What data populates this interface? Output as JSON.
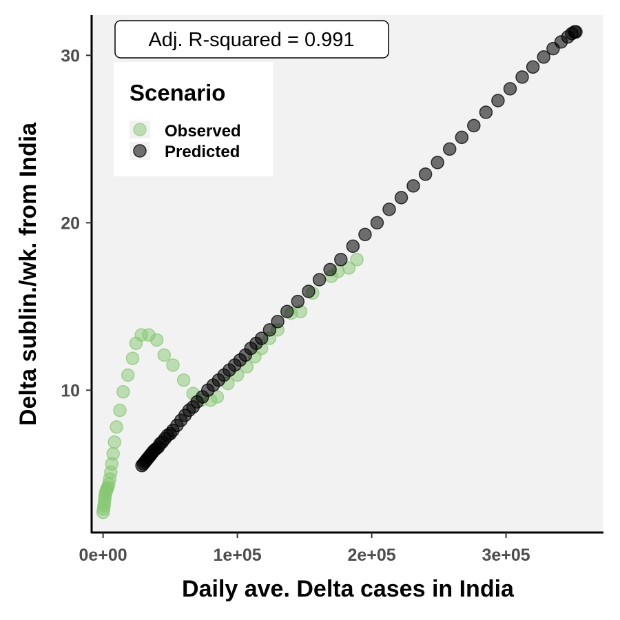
{
  "chart_data": {
    "type": "scatter",
    "xlabel": "Daily ave. Delta cases in India",
    "ylabel": "Delta sublin./wk. from India",
    "xlim": [
      -8000,
      372000
    ],
    "ylim": [
      1.5,
      32.4
    ],
    "x_ticks": [
      0,
      100000,
      200000,
      300000
    ],
    "x_tick_labels": [
      "0e+00",
      "1e+05",
      "2e+05",
      "3e+05"
    ],
    "y_ticks": [
      10,
      20,
      30
    ],
    "y_tick_labels": [
      "10",
      "20",
      "30"
    ],
    "grid": false,
    "background": "#f2f2f2",
    "annotation": "Adj. R-squared = 0.991",
    "legend": {
      "title": "Scenario",
      "position": "top-left",
      "entries": [
        {
          "label": "Observed",
          "color": "#84c870"
        },
        {
          "label": "Predicted",
          "color": "#000000"
        }
      ]
    },
    "series": [
      {
        "name": "Observed",
        "color": "#84c870",
        "opacity": 0.5,
        "points": [
          [
            0,
            2.7
          ],
          [
            400,
            2.9
          ],
          [
            700,
            3.1
          ],
          [
            1000,
            3.3
          ],
          [
            1300,
            3.5
          ],
          [
            1600,
            3.7
          ],
          [
            2000,
            3.9
          ],
          [
            2500,
            4.0
          ],
          [
            3000,
            4.1
          ],
          [
            3500,
            4.2
          ],
          [
            4200,
            4.4
          ],
          [
            5000,
            4.7
          ],
          [
            5800,
            5.1
          ],
          [
            6500,
            5.6
          ],
          [
            7500,
            6.2
          ],
          [
            8500,
            6.9
          ],
          [
            10000,
            7.8
          ],
          [
            12500,
            8.8
          ],
          [
            15000,
            9.9
          ],
          [
            18500,
            10.9
          ],
          [
            22000,
            11.9
          ],
          [
            24500,
            12.8
          ],
          [
            28500,
            13.3
          ],
          [
            34000,
            13.3
          ],
          [
            40000,
            13.0
          ],
          [
            45500,
            12.1
          ],
          [
            52000,
            11.5
          ],
          [
            60000,
            10.6
          ],
          [
            67000,
            9.8
          ],
          [
            73000,
            9.4
          ],
          [
            80000,
            9.4
          ],
          [
            85000,
            9.6
          ],
          [
            93000,
            10.4
          ],
          [
            100000,
            10.9
          ],
          [
            107000,
            11.4
          ],
          [
            113000,
            12.0
          ],
          [
            118000,
            12.5
          ],
          [
            124000,
            13.1
          ],
          [
            130000,
            13.6
          ],
          [
            140000,
            14.6
          ],
          [
            147000,
            14.7
          ],
          [
            156000,
            15.8
          ],
          [
            170000,
            16.8
          ],
          [
            175000,
            17.1
          ],
          [
            183000,
            17.3
          ],
          [
            189000,
            17.8
          ]
        ]
      },
      {
        "name": "Predicted",
        "color": "#000000",
        "opacity": 0.55,
        "points": [
          [
            29000,
            5.5
          ],
          [
            30000,
            5.6
          ],
          [
            31000,
            5.7
          ],
          [
            32000,
            5.8
          ],
          [
            33000,
            5.9
          ],
          [
            34000,
            6.0
          ],
          [
            35000,
            6.1
          ],
          [
            36000,
            6.2
          ],
          [
            37000,
            6.3
          ],
          [
            38000,
            6.4
          ],
          [
            39500,
            6.5
          ],
          [
            41000,
            6.6
          ],
          [
            42500,
            6.8
          ],
          [
            44000,
            6.9
          ],
          [
            46000,
            7.1
          ],
          [
            48000,
            7.3
          ],
          [
            50000,
            7.4
          ],
          [
            52000,
            7.6
          ],
          [
            55000,
            7.9
          ],
          [
            58000,
            8.2
          ],
          [
            61000,
            8.5
          ],
          [
            64000,
            8.8
          ],
          [
            67000,
            9.0
          ],
          [
            70000,
            9.3
          ],
          [
            74000,
            9.6
          ],
          [
            78000,
            10.0
          ],
          [
            82000,
            10.3
          ],
          [
            86000,
            10.6
          ],
          [
            90000,
            10.9
          ],
          [
            94000,
            11.2
          ],
          [
            98000,
            11.5
          ],
          [
            102000,
            11.8
          ],
          [
            106000,
            12.1
          ],
          [
            110000,
            12.5
          ],
          [
            114000,
            12.8
          ],
          [
            118000,
            13.1
          ],
          [
            124000,
            13.6
          ],
          [
            130000,
            14.1
          ],
          [
            137000,
            14.7
          ],
          [
            145000,
            15.3
          ],
          [
            153000,
            15.9
          ],
          [
            161000,
            16.6
          ],
          [
            169000,
            17.2
          ],
          [
            177000,
            17.8
          ],
          [
            186000,
            18.6
          ],
          [
            195000,
            19.3
          ],
          [
            204000,
            20.0
          ],
          [
            213000,
            20.8
          ],
          [
            222000,
            21.5
          ],
          [
            231000,
            22.2
          ],
          [
            240000,
            22.9
          ],
          [
            249000,
            23.6
          ],
          [
            258000,
            24.4
          ],
          [
            267000,
            25.1
          ],
          [
            276000,
            25.8
          ],
          [
            285000,
            26.6
          ],
          [
            294000,
            27.3
          ],
          [
            303000,
            28.0
          ],
          [
            312000,
            28.7
          ],
          [
            320000,
            29.3
          ],
          [
            328000,
            29.9
          ],
          [
            335000,
            30.4
          ],
          [
            341000,
            30.8
          ],
          [
            346000,
            31.1
          ],
          [
            349000,
            31.3
          ],
          [
            351000,
            31.4
          ],
          [
            352000,
            31.4
          ]
        ]
      }
    ]
  }
}
